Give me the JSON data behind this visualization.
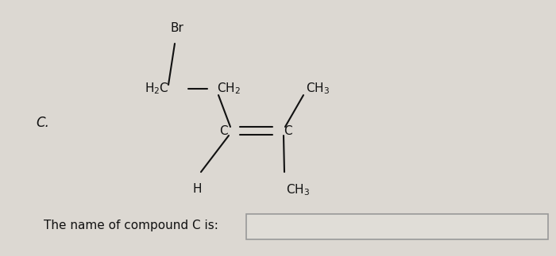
{
  "background_color": "#dcd8d2",
  "label_C": "C.",
  "label_Br": "Br",
  "label_text": "The name of compound C is:",
  "text_color": "#111111",
  "box_color": "#ccc9c3",
  "box_border": "#999999",
  "lw": 1.5,
  "fs_main": 11,
  "fs_chem": 11
}
